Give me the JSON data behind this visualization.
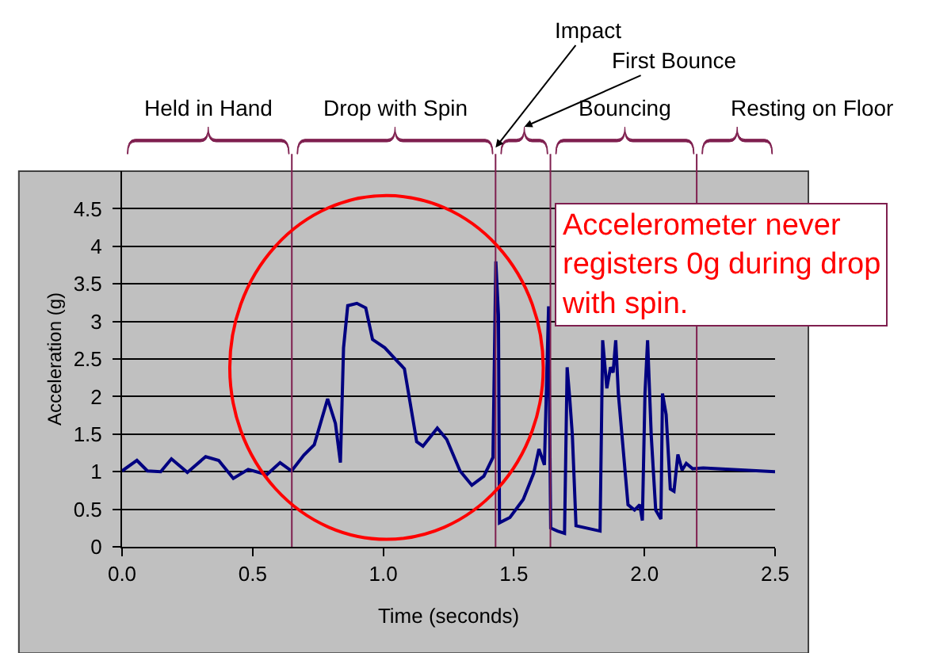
{
  "chart_data": {
    "type": "line",
    "xlabel": "Time (seconds)",
    "ylabel": "Acceleration (g)",
    "xlim": [
      0,
      2.5
    ],
    "ylim": [
      0,
      5
    ],
    "xticks": [
      {
        "value": 0,
        "label": "0.0"
      },
      {
        "value": 0.5,
        "label": "0.5"
      },
      {
        "value": 1,
        "label": "1.0"
      },
      {
        "value": 1.5,
        "label": "1.5"
      },
      {
        "value": 2,
        "label": "2.0"
      },
      {
        "value": 2.5,
        "label": "2.5"
      }
    ],
    "yticks": [
      0,
      0.5,
      1,
      1.5,
      2,
      2.5,
      3,
      3.5,
      4,
      4.5
    ],
    "grid": "y",
    "marker": "none",
    "line_style": "solid",
    "x": [
      0,
      0.057,
      0.097,
      0.148,
      0.189,
      0.25,
      0.32,
      0.37,
      0.426,
      0.483,
      0.554,
      0.605,
      0.649,
      0.696,
      0.736,
      0.787,
      0.817,
      0.836,
      0.848,
      0.864,
      0.899,
      0.933,
      0.959,
      1.006,
      1.051,
      1.081,
      1.128,
      1.152,
      1.207,
      1.243,
      1.294,
      1.339,
      1.385,
      1.42,
      1.431,
      1.441,
      1.445,
      1.485,
      1.536,
      1.576,
      1.596,
      1.617,
      1.633,
      1.641,
      1.667,
      1.694,
      1.704,
      1.714,
      1.724,
      1.738,
      1.83,
      1.84,
      1.856,
      1.87,
      1.88,
      1.89,
      1.9,
      1.937,
      1.962,
      1.982,
      1.992,
      2.002,
      2.012,
      2.026,
      2.043,
      2.063,
      2.069,
      2.083,
      2.099,
      2.113,
      2.128,
      2.144,
      2.16,
      2.184,
      2.225,
      2.5
    ],
    "series": [
      {
        "color": "#000080",
        "values": [
          1.01,
          1.15,
          1.01,
          1.0,
          1.17,
          0.99,
          1.2,
          1.15,
          0.91,
          1.03,
          0.96,
          1.12,
          1.01,
          1.22,
          1.36,
          1.97,
          1.64,
          1.12,
          2.65,
          3.21,
          3.24,
          3.18,
          2.76,
          2.65,
          2.48,
          2.37,
          1.4,
          1.34,
          1.58,
          1.43,
          1.01,
          0.82,
          0.94,
          1.19,
          3.8,
          3.09,
          0.32,
          0.39,
          0.63,
          0.98,
          1.3,
          1.09,
          3.2,
          0.25,
          0.21,
          0.18,
          2.39,
          1.97,
          1.48,
          0.28,
          0.21,
          2.75,
          2.11,
          2.39,
          2.32,
          2.75,
          2.04,
          0.56,
          0.49,
          0.56,
          0.35,
          2.04,
          2.75,
          1.48,
          0.49,
          0.37,
          2.04,
          1.76,
          0.77,
          0.74,
          1.23,
          1.02,
          1.11,
          1.04,
          1.05,
          1.0
        ]
      }
    ],
    "ref_lines": [
      {
        "axis": "x",
        "value": 0.65,
        "color": "#7f1f4f"
      },
      {
        "axis": "x",
        "value": 1.43,
        "label": "Impact",
        "color": "#7f1f4f"
      },
      {
        "axis": "x",
        "value": 1.64,
        "color": "#7f1f4f"
      },
      {
        "axis": "x",
        "value": 2.2,
        "color": "#7f1f4f"
      }
    ],
    "annotations": [
      "Held in Hand",
      "Drop with Spin",
      "First Bounce",
      "Bouncing",
      "Resting on Floor",
      "Accelerometer never registers 0g during drop with spin."
    ]
  }
}
